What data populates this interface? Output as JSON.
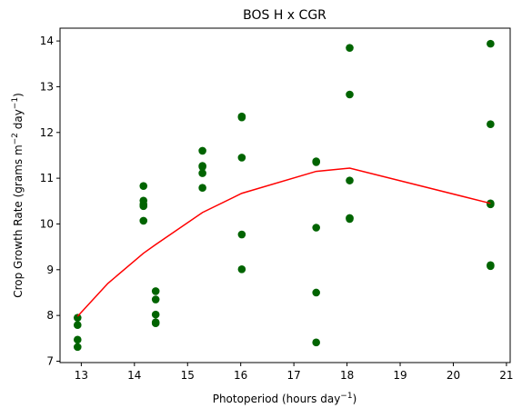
{
  "chart_data": {
    "type": "scatter",
    "title": "BOS H x CGR",
    "xlabel": {
      "base": "Photoperiod (hours day",
      "sup": "−1",
      "close": ")"
    },
    "ylabel": {
      "base": "Crop Growth Rate (grams m",
      "sup1": "−2",
      "mid": " day",
      "sup2": "−1",
      "close": ")"
    },
    "xlim": [
      12.6,
      21.07
    ],
    "ylim": [
      6.97,
      14.28
    ],
    "xticks": [
      13,
      14,
      15,
      16,
      17,
      18,
      19,
      20,
      21
    ],
    "yticks": [
      7,
      8,
      9,
      10,
      11,
      12,
      13,
      14
    ],
    "grid": false,
    "colors": {
      "points": "#006400",
      "line": "#ff0000"
    },
    "series": [
      {
        "type": "scatter",
        "points": [
          {
            "x": 12.93,
            "y": 7.95
          },
          {
            "x": 12.93,
            "y": 7.79
          },
          {
            "x": 12.93,
            "y": 7.47
          },
          {
            "x": 12.93,
            "y": 7.31
          },
          {
            "x": 14.17,
            "y": 10.83
          },
          {
            "x": 14.17,
            "y": 10.51
          },
          {
            "x": 14.17,
            "y": 10.43
          },
          {
            "x": 14.17,
            "y": 10.39
          },
          {
            "x": 14.17,
            "y": 10.07
          },
          {
            "x": 14.4,
            "y": 8.53
          },
          {
            "x": 14.4,
            "y": 8.35
          },
          {
            "x": 14.4,
            "y": 8.02
          },
          {
            "x": 14.4,
            "y": 7.85
          },
          {
            "x": 14.4,
            "y": 7.83
          },
          {
            "x": 15.28,
            "y": 11.6
          },
          {
            "x": 15.28,
            "y": 11.27
          },
          {
            "x": 15.28,
            "y": 11.25
          },
          {
            "x": 15.28,
            "y": 11.11
          },
          {
            "x": 15.28,
            "y": 10.79
          },
          {
            "x": 16.02,
            "y": 12.35
          },
          {
            "x": 16.02,
            "y": 12.33
          },
          {
            "x": 16.02,
            "y": 11.45
          },
          {
            "x": 16.02,
            "y": 9.77
          },
          {
            "x": 16.02,
            "y": 9.01
          },
          {
            "x": 17.42,
            "y": 11.37
          },
          {
            "x": 17.42,
            "y": 11.35
          },
          {
            "x": 17.42,
            "y": 9.92
          },
          {
            "x": 17.42,
            "y": 8.5
          },
          {
            "x": 17.42,
            "y": 7.41
          },
          {
            "x": 18.05,
            "y": 13.85
          },
          {
            "x": 18.05,
            "y": 12.83
          },
          {
            "x": 18.05,
            "y": 10.95
          },
          {
            "x": 18.05,
            "y": 10.13
          },
          {
            "x": 18.05,
            "y": 10.11
          },
          {
            "x": 20.7,
            "y": 13.94
          },
          {
            "x": 20.7,
            "y": 12.18
          },
          {
            "x": 20.7,
            "y": 10.45
          },
          {
            "x": 20.7,
            "y": 10.43
          },
          {
            "x": 20.7,
            "y": 9.1
          },
          {
            "x": 20.7,
            "y": 9.08
          }
        ]
      },
      {
        "type": "line",
        "points": [
          {
            "x": 12.93,
            "y": 7.98
          },
          {
            "x": 13.5,
            "y": 8.7
          },
          {
            "x": 14.17,
            "y": 9.36
          },
          {
            "x": 14.4,
            "y": 9.55
          },
          {
            "x": 15.28,
            "y": 10.25
          },
          {
            "x": 16.02,
            "y": 10.67
          },
          {
            "x": 17.42,
            "y": 11.15
          },
          {
            "x": 18.05,
            "y": 11.22
          },
          {
            "x": 20.7,
            "y": 10.45
          }
        ]
      }
    ]
  }
}
